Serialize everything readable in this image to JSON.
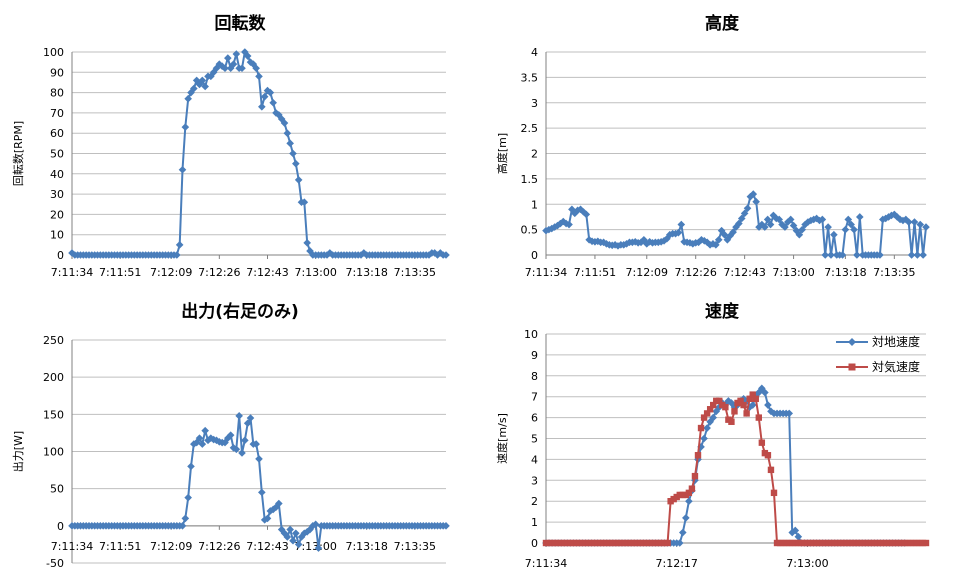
{
  "chart_data": [
    {
      "type": "line",
      "title": "回転数",
      "ylabel": "回転数[RPM]",
      "xlabel": "",
      "ylim": [
        0,
        100
      ],
      "ystep": 10,
      "x_ticks": [
        "7:11:34",
        "7:11:51",
        "7:12:09",
        "7:12:26",
        "7:12:43",
        "7:13:00",
        "7:13:18",
        "7:13:35"
      ],
      "grid": true,
      "series": [
        {
          "color": "#4a7ebb",
          "marker": "diamond",
          "values": [
            1,
            0,
            0,
            0,
            0,
            0,
            0,
            0,
            0,
            0,
            0,
            0,
            0,
            0,
            0,
            0,
            0,
            0,
            0,
            0,
            0,
            0,
            0,
            0,
            0,
            0,
            0,
            0,
            0,
            0,
            0,
            0,
            0,
            0,
            0,
            0,
            0,
            0,
            5,
            42,
            63,
            77,
            80,
            82,
            86,
            84,
            86,
            83,
            88,
            88,
            90,
            92,
            94,
            93,
            92,
            97,
            92,
            94,
            99,
            92,
            92,
            100,
            98,
            95,
            94,
            92,
            88,
            73,
            78,
            81,
            80,
            75,
            70,
            69,
            67,
            65,
            60,
            55,
            50,
            45,
            37,
            26,
            26,
            6,
            2,
            0,
            0,
            0,
            0,
            0,
            0,
            1,
            0,
            0,
            0,
            0,
            0,
            0,
            0,
            0,
            0,
            0,
            0,
            1,
            0,
            0,
            0,
            0,
            0,
            0,
            0,
            0,
            0,
            0,
            0,
            0,
            0,
            0,
            0,
            0,
            0,
            0,
            0,
            0,
            0,
            0,
            0,
            1,
            1,
            0,
            1,
            0,
            0
          ]
        }
      ]
    },
    {
      "type": "line",
      "title": "高度",
      "ylabel": "高度[m]",
      "xlabel": "",
      "ylim": [
        0,
        4
      ],
      "ystep": 0.5,
      "x_ticks": [
        "7:11:34",
        "7:11:51",
        "7:12:09",
        "7:12:26",
        "7:12:43",
        "7:13:00",
        "7:13:18",
        "7:13:35"
      ],
      "grid": true,
      "series": [
        {
          "color": "#4a7ebb",
          "marker": "diamond",
          "values": [
            0.48,
            0.5,
            0.52,
            0.55,
            0.58,
            0.62,
            0.66,
            0.62,
            0.6,
            0.9,
            0.82,
            0.88,
            0.9,
            0.85,
            0.8,
            0.3,
            0.27,
            0.26,
            0.27,
            0.25,
            0.25,
            0.22,
            0.2,
            0.19,
            0.2,
            0.18,
            0.2,
            0.2,
            0.22,
            0.25,
            0.25,
            0.26,
            0.24,
            0.25,
            0.3,
            0.22,
            0.26,
            0.24,
            0.25,
            0.25,
            0.26,
            0.28,
            0.32,
            0.4,
            0.42,
            0.42,
            0.44,
            0.6,
            0.26,
            0.25,
            0.24,
            0.22,
            0.24,
            0.25,
            0.3,
            0.28,
            0.25,
            0.2,
            0.22,
            0.2,
            0.3,
            0.48,
            0.4,
            0.3,
            0.38,
            0.45,
            0.55,
            0.62,
            0.72,
            0.82,
            0.92,
            1.15,
            1.2,
            1.05,
            0.55,
            0.6,
            0.55,
            0.7,
            0.6,
            0.78,
            0.72,
            0.7,
            0.6,
            0.55,
            0.65,
            0.7,
            0.58,
            0.48,
            0.4,
            0.5,
            0.6,
            0.65,
            0.68,
            0.7,
            0.72,
            0.68,
            0.7,
            0.0,
            0.55,
            0.0,
            0.4,
            0.0,
            0.0,
            0.0,
            0.5,
            0.7,
            0.6,
            0.5,
            0.0,
            0.75,
            0.0,
            0.0,
            0.0,
            0.0,
            0.0,
            0.0,
            0.0,
            0.7,
            0.72,
            0.75,
            0.78,
            0.8,
            0.75,
            0.7,
            0.68,
            0.7,
            0.65,
            0.0,
            0.65,
            0.0,
            0.6,
            0.0,
            0.55
          ]
        }
      ]
    },
    {
      "type": "line",
      "title": "出力(右足のみ)",
      "ylabel": "出力[W]",
      "xlabel": "",
      "ylim": [
        -50,
        250
      ],
      "ystep": 50,
      "x_ticks": [
        "7:11:34",
        "7:11:51",
        "7:12:09",
        "7:12:26",
        "7:12:43",
        "7:13:00",
        "7:13:18",
        "7:13:35"
      ],
      "grid": true,
      "series": [
        {
          "color": "#4a7ebb",
          "marker": "diamond",
          "values": [
            0,
            0,
            0,
            0,
            0,
            0,
            0,
            0,
            0,
            0,
            0,
            0,
            0,
            0,
            0,
            0,
            0,
            0,
            0,
            0,
            0,
            0,
            0,
            0,
            0,
            0,
            0,
            0,
            0,
            0,
            0,
            0,
            0,
            0,
            0,
            0,
            0,
            0,
            0,
            0,
            10,
            38,
            80,
            110,
            112,
            118,
            110,
            128,
            115,
            118,
            116,
            115,
            113,
            112,
            112,
            118,
            122,
            105,
            103,
            148,
            98,
            115,
            138,
            145,
            110,
            110,
            90,
            45,
            8,
            10,
            20,
            22,
            25,
            30,
            -5,
            -10,
            -15,
            -5,
            -20,
            -10,
            -25,
            -15,
            -10,
            -8,
            -5,
            0,
            2,
            -30,
            0,
            0,
            0,
            0,
            0,
            0,
            0,
            0,
            0,
            0,
            0,
            0,
            0,
            0,
            0,
            0,
            0,
            0,
            0,
            0,
            0,
            0,
            0,
            0,
            0,
            0,
            0,
            0,
            0,
            0,
            0,
            0,
            0,
            0,
            0,
            0,
            0,
            0,
            0,
            0,
            0,
            0,
            0,
            0,
            0
          ]
        }
      ]
    },
    {
      "type": "line",
      "title": "速度",
      "ylabel": "速度[m/s]",
      "xlabel": "",
      "ylim": [
        0,
        10
      ],
      "ystep": 1,
      "x_ticks": [
        "7:11:34",
        "7:12:17",
        "7:13:00"
      ],
      "grid": true,
      "legend": "top-right",
      "series": [
        {
          "name": "対地速度",
          "color": "#4a7ebb",
          "marker": "diamond",
          "values": [
            0,
            0,
            0,
            0,
            0,
            0,
            0,
            0,
            0,
            0,
            0,
            0,
            0,
            0,
            0,
            0,
            0,
            0,
            0,
            0,
            0,
            0,
            0,
            0,
            0,
            0,
            0,
            0,
            0,
            0,
            0,
            0,
            0,
            0,
            0,
            0,
            0,
            0,
            0,
            0,
            0,
            0,
            0,
            0,
            0,
            0.5,
            1.2,
            2.0,
            2.5,
            3.0,
            4.0,
            4.6,
            5.0,
            5.5,
            5.8,
            6.0,
            6.3,
            6.5,
            6.7,
            6.6,
            6.8,
            6.7,
            6.5,
            6.6,
            6.8,
            6.9,
            6.8,
            6.5,
            6.6,
            7.0,
            7.2,
            7.4,
            7.2,
            6.6,
            6.3,
            6.2,
            6.2,
            6.2,
            6.2,
            6.2,
            6.2,
            0.5,
            0.6,
            0.3,
            0,
            0,
            0,
            0,
            0,
            0,
            0,
            0,
            0,
            0,
            0,
            0,
            0,
            0,
            0,
            0,
            0,
            0,
            0,
            0,
            0,
            0,
            0,
            0,
            0,
            0,
            0,
            0,
            0,
            0,
            0,
            0,
            0,
            0,
            0
          ]
        },
        {
          "name": "対気速度",
          "color": "#be4b48",
          "marker": "square",
          "values": [
            0,
            0,
            0,
            0,
            0,
            0,
            0,
            0,
            0,
            0,
            0,
            0,
            0,
            0,
            0,
            0,
            0,
            0,
            0,
            0,
            0,
            0,
            0,
            0,
            0,
            0,
            0,
            0,
            0,
            0,
            0,
            0,
            0,
            0,
            0,
            0,
            0,
            0,
            0,
            0,
            0,
            2.0,
            2.1,
            2.2,
            2.3,
            2.3,
            2.3,
            2.4,
            2.6,
            3.2,
            4.2,
            5.5,
            6.0,
            6.2,
            6.4,
            6.6,
            6.8,
            6.8,
            6.6,
            6.5,
            5.9,
            5.8,
            6.3,
            6.7,
            6.8,
            6.6,
            6.2,
            6.9,
            7.1,
            6.9,
            6.0,
            4.8,
            4.3,
            4.2,
            3.5,
            2.4,
            0,
            0,
            0,
            0,
            0,
            0,
            0,
            0,
            0,
            0,
            0,
            0,
            0,
            0,
            0,
            0,
            0,
            0,
            0,
            0,
            0,
            0,
            0,
            0,
            0,
            0,
            0,
            0,
            0,
            0,
            0,
            0,
            0,
            0,
            0,
            0,
            0,
            0,
            0,
            0,
            0,
            0,
            0,
            0,
            0,
            0,
            0,
            0,
            0,
            0
          ]
        }
      ]
    }
  ]
}
